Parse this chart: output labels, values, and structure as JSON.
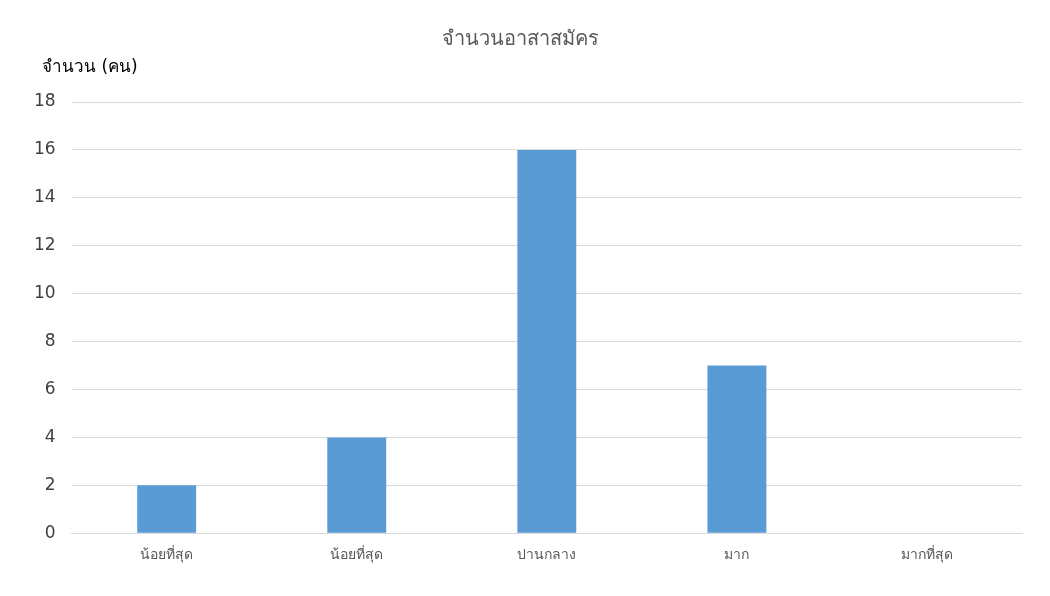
{
  "chart_data": {
    "type": "bar",
    "title": "จำนวนอาสาสมัคร",
    "ylabel": "จำนวน (คน)",
    "categories": [
      "น้อยที่สุด",
      "น้อยที่สุด",
      "ปานกลาง",
      "มาก",
      "มากที่สุด"
    ],
    "values": [
      2,
      4,
      16,
      7,
      0
    ],
    "color": "#5b9bd5",
    "ylim": [
      0,
      18
    ],
    "yticks": [
      0,
      2,
      4,
      6,
      8,
      10,
      12,
      14,
      16,
      18
    ],
    "grid": "y"
  }
}
